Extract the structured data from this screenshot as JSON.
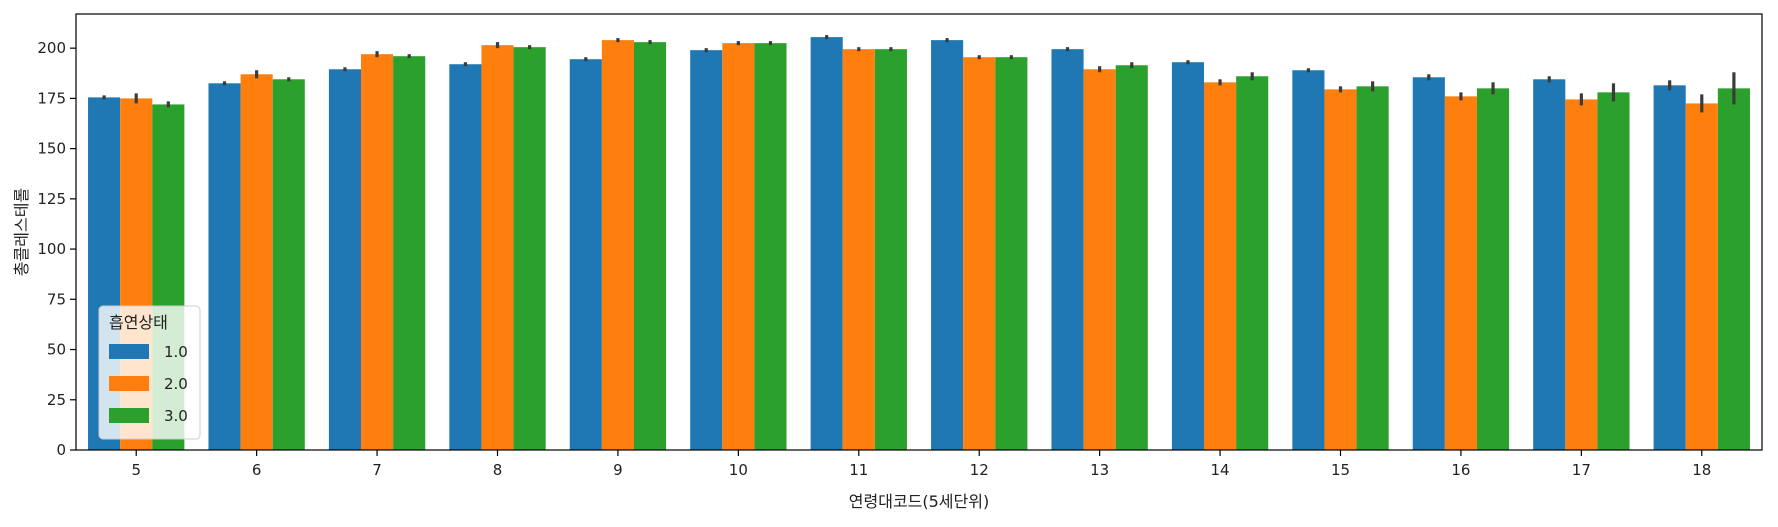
{
  "chart_data": {
    "type": "bar",
    "xlabel": "연령대코드(5세단위)",
    "ylabel": "총콜레스테롤",
    "ylim": [
      0,
      217
    ],
    "yticks": [
      0,
      25,
      50,
      75,
      100,
      125,
      150,
      175,
      200
    ],
    "categories": [
      "5",
      "6",
      "7",
      "8",
      "9",
      "10",
      "11",
      "12",
      "13",
      "14",
      "15",
      "16",
      "17",
      "18"
    ],
    "legend": {
      "title": "흡연상태",
      "position": "lower-left"
    },
    "grid": false,
    "error_bars": true,
    "series": [
      {
        "name": "1.0",
        "color": "#1f77b4",
        "values": [
          175.5,
          182.5,
          189.5,
          192,
          194.5,
          199,
          205.5,
          204,
          199.5,
          193,
          189,
          185.5,
          184.5,
          181.5
        ],
        "errors": [
          1.0,
          1.0,
          1.0,
          1.0,
          1.0,
          1.0,
          1.0,
          1.0,
          1.0,
          1.0,
          1.0,
          1.5,
          1.5,
          2.5
        ]
      },
      {
        "name": "2.0",
        "color": "#ff7f0e",
        "values": [
          175,
          187,
          197,
          201.5,
          204,
          202.5,
          199.5,
          195.5,
          189.5,
          183,
          179.5,
          176,
          174.5,
          172.5
        ],
        "errors": [
          2.5,
          2.0,
          1.5,
          1.5,
          1.0,
          1.0,
          1.0,
          1.0,
          1.5,
          1.5,
          1.5,
          2.0,
          3.0,
          4.5
        ]
      },
      {
        "name": "3.0",
        "color": "#2ca02c",
        "values": [
          172,
          184.5,
          196,
          200.5,
          203,
          202.5,
          199.5,
          195.5,
          191.5,
          186,
          181,
          180,
          178,
          180
        ],
        "errors": [
          1.5,
          1.0,
          1.0,
          1.0,
          1.0,
          1.0,
          1.0,
          1.0,
          1.5,
          2.0,
          2.5,
          3.0,
          4.5,
          8.0
        ]
      }
    ]
  }
}
